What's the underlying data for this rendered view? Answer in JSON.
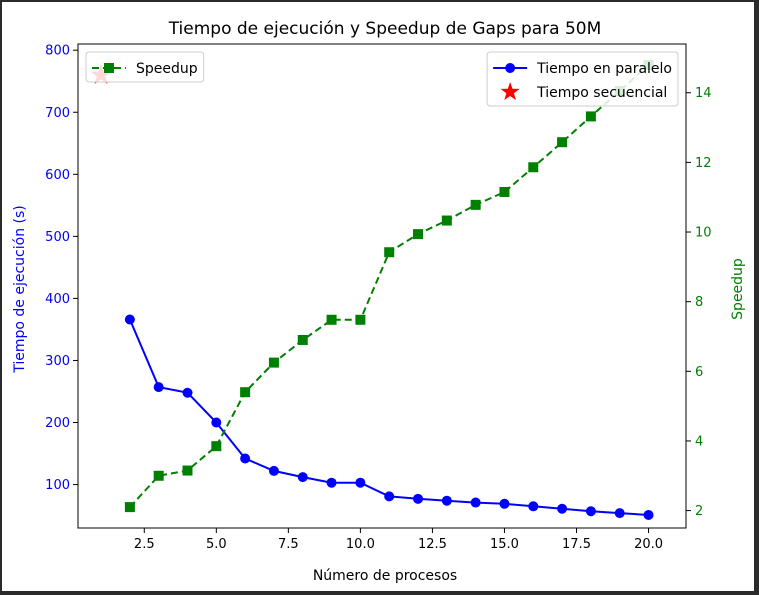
{
  "chart_data": {
    "type": "line",
    "title": "Tiempo de ejecución y Speedup de Gaps para 50M",
    "xlabel": "Número de procesos",
    "ylabel_left": "Tiempo de ejecución (s)",
    "ylabel_right": "Speedup",
    "x": [
      2,
      3,
      4,
      5,
      6,
      7,
      8,
      9,
      10,
      11,
      12,
      13,
      14,
      15,
      16,
      17,
      18,
      19,
      20
    ],
    "xlim": [
      0.2,
      21.3
    ],
    "ylim_left": [
      30,
      810
    ],
    "ylim_right": [
      1.5,
      15.4
    ],
    "x_ticks": [
      2.5,
      5.0,
      7.5,
      10.0,
      12.5,
      15.0,
      17.5,
      20.0
    ],
    "x_tick_labels": [
      "2.5",
      "5.0",
      "7.5",
      "10.0",
      "12.5",
      "15.0",
      "17.5",
      "20.0"
    ],
    "y_left_ticks": [
      100,
      200,
      300,
      400,
      500,
      600,
      700,
      800
    ],
    "y_right_ticks": [
      2,
      4,
      6,
      8,
      10,
      12,
      14
    ],
    "grid": false,
    "series": [
      {
        "name": "Tiempo en paralelo",
        "axis": "left",
        "color": "#0000ff",
        "marker": "circle",
        "linestyle": "solid",
        "values": [
          366,
          257,
          248,
          200,
          142,
          122,
          112,
          103,
          103,
          81,
          77,
          74,
          71,
          69,
          65,
          61,
          57,
          54,
          51
        ]
      },
      {
        "name": "Speedup",
        "axis": "right",
        "color": "#008000",
        "marker": "square",
        "linestyle": "dashed",
        "values": [
          2.1,
          3.0,
          3.15,
          3.85,
          5.4,
          6.25,
          6.9,
          7.48,
          7.48,
          9.42,
          9.94,
          10.33,
          10.78,
          11.15,
          11.86,
          12.58,
          13.32,
          14.05,
          14.8
        ]
      },
      {
        "name": "Tiempo secuencial",
        "axis": "left",
        "color": "#ff0000",
        "marker": "star",
        "x": [
          1
        ],
        "values": [
          760
        ]
      }
    ],
    "legend_left": {
      "position": "upper-left",
      "entries": [
        "Speedup"
      ]
    },
    "legend_right": {
      "position": "upper-right",
      "entries": [
        "Tiempo en paralelo",
        "Tiempo secuencial"
      ]
    },
    "colors": {
      "left_axis": "#0000ff",
      "right_axis": "#008000",
      "frame": "#000000"
    }
  }
}
